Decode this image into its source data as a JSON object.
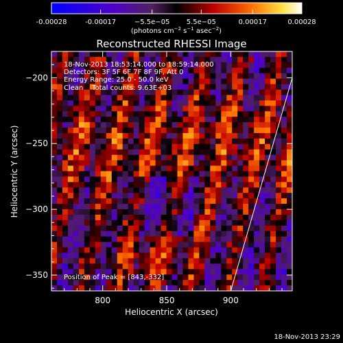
{
  "chart_data": {
    "type": "heatmap",
    "title": "Reconstructed RHESSI Image",
    "xlabel": "Heliocentric X (arcsec)",
    "ylabel": "Heliocentric Y (arcsec)",
    "xlim": [
      760,
      948
    ],
    "ylim": [
      -362,
      -180
    ],
    "x_ticks": [
      800,
      850,
      900
    ],
    "y_ticks": [
      -200,
      -250,
      -300,
      -350
    ],
    "colorbar": {
      "ticks": [
        -0.00028,
        -0.00017,
        -5.5e-05,
        5.5e-05,
        0.00017,
        0.00028
      ],
      "tick_labels": [
        "-0.00028",
        "-0.00017",
        "−5.5e−05",
        "5.5e−05",
        "0.00017",
        "0.00028"
      ],
      "range": [
        -0.00028,
        0.00028
      ],
      "unit_label_main": "(photons cm",
      "unit_sup1": "−2",
      "unit_mid": " s",
      "unit_sup2": "−1",
      "unit_mid2": " asec",
      "unit_sup3": "−2",
      "unit_end": ")"
    },
    "annotations": [
      "18-Nov-2013 18:53:14.000 to 18:59:14.000",
      "Detectors: 3F 5F 6F 7F 8F 9F, Att 0",
      "Energy Range: 25.0 - 50.0 keV",
      "Clean    Total counts: 9.63E+03"
    ],
    "peak_label": "Position of Peak = [843,-332]",
    "peak": [
      843,
      -332
    ],
    "limb_line": [
      [
        900,
        -362
      ],
      [
        948,
        -200
      ]
    ],
    "grid": false
  },
  "footer_timestamp": "18-Nov-2013 23:29"
}
